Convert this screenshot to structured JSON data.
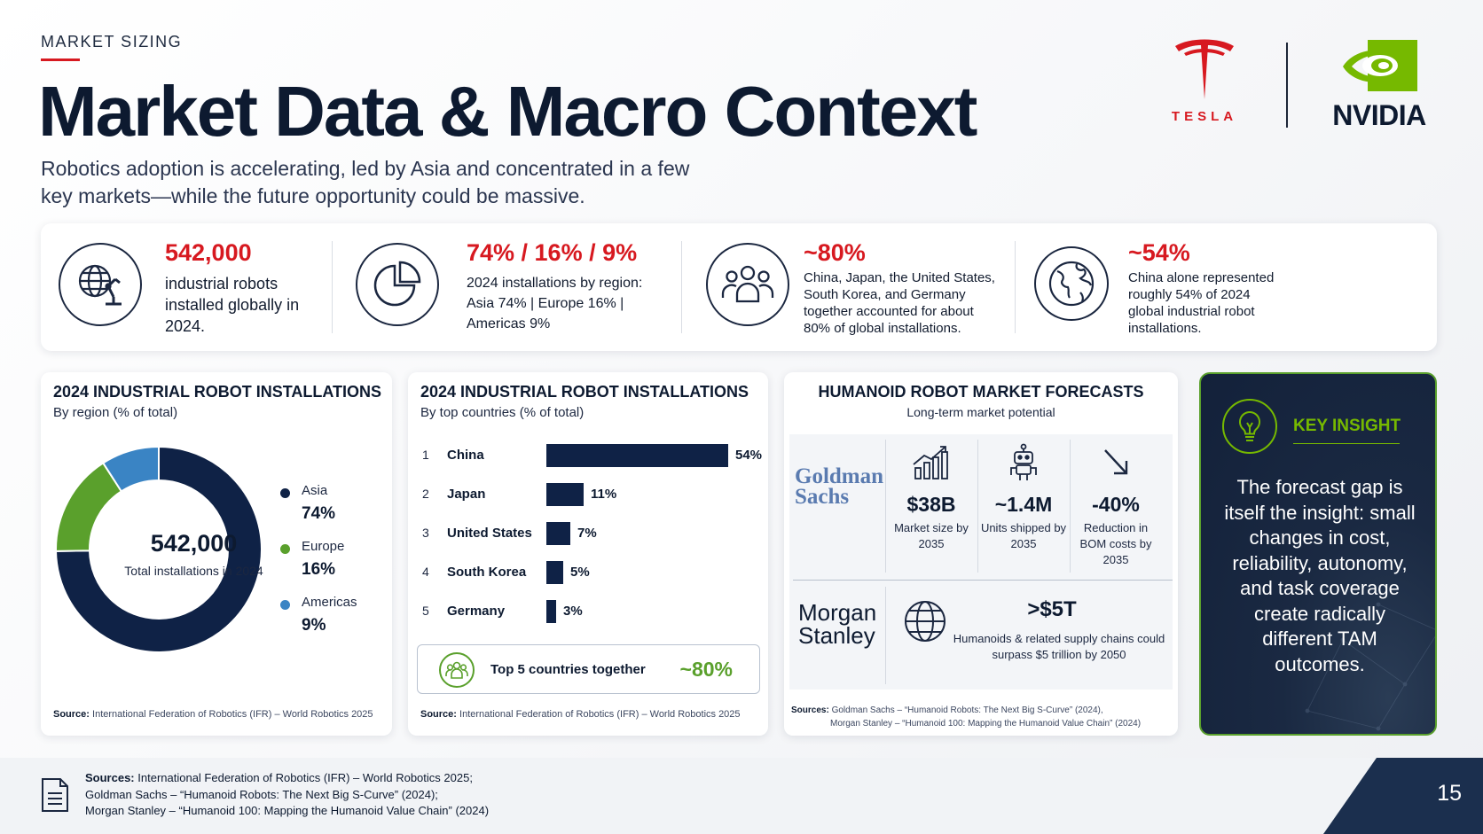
{
  "header": {
    "eyebrow": "MARKET SIZING",
    "title": "Market Data & Macro Context",
    "subtitle": "Robotics adoption is accelerating, led by Asia and concentrated in a few key markets—while the future opportunity could be massive."
  },
  "logos": {
    "tesla": "TESLA",
    "nvidia": "NVIDIA"
  },
  "stats": [
    {
      "value": "542,000",
      "desc": "industrial robots installed globally in 2024.",
      "icon": "globe-robot-arm-icon"
    },
    {
      "value": "74% / 16% / 9%",
      "desc": "2024 installations by region: Asia 74%  |  Europe 16%  |  Americas 9%",
      "icon": "pie-chart-icon"
    },
    {
      "value": "~80%",
      "desc": "China, Japan, the United States, South Korea, and Germany together accounted for about 80% of global installations.",
      "icon": "people-group-icon"
    },
    {
      "value": "~54%",
      "desc": "China alone represented roughly 54% of 2024 global industrial robot installations.",
      "icon": "globe-icon"
    }
  ],
  "region_card": {
    "title": "2024 INDUSTRIAL ROBOT INSTALLATIONS",
    "subtitle": "By region (% of total)",
    "center_value": "542,000",
    "center_label": "Total installations in 2024",
    "source_label": "Source:",
    "source": "International Federation of Robotics (IFR) – World Robotics 2025"
  },
  "country_card": {
    "title": "2024 INDUSTRIAL ROBOT INSTALLATIONS",
    "subtitle": "By top countries (% of total)",
    "top5_label": "Top 5 countries together",
    "top5_value": "~80%",
    "source_label": "Source:",
    "source": "International Federation of Robotics (IFR) – World Robotics 2025"
  },
  "chart_data": [
    {
      "type": "pie",
      "title": "2024 INDUSTRIAL ROBOT INSTALLATIONS",
      "subtitle": "By region (% of total)",
      "categories": [
        "Asia",
        "Europe",
        "Americas"
      ],
      "values": [
        74,
        16,
        9
      ],
      "labels": [
        "74%",
        "16%",
        "9%"
      ],
      "colors": [
        "#0f2246",
        "#5aa02c",
        "#3a84c4"
      ],
      "legend": "right"
    },
    {
      "type": "bar",
      "title": "2024 INDUSTRIAL ROBOT INSTALLATIONS",
      "subtitle": "By top countries (% of total)",
      "categories": [
        "China",
        "Japan",
        "United States",
        "South Korea",
        "Germany"
      ],
      "ranks": [
        "1",
        "2",
        "3",
        "4",
        "5"
      ],
      "values": [
        54,
        11,
        7,
        5,
        3
      ],
      "labels": [
        "54%",
        "11%",
        "7%",
        "5%",
        "3%"
      ],
      "orientation": "horizontal"
    }
  ],
  "forecast": {
    "title": "HUMANOID ROBOT MARKET FORECASTS",
    "subtitle": "Long-term market potential",
    "gs_logo": "Goldman Sachs",
    "gs_metrics": [
      {
        "value": "$38B",
        "desc": "Market size by 2035",
        "icon": "growth-chart-icon"
      },
      {
        "value": "~1.4M",
        "desc": "Units shipped by 2035",
        "icon": "robot-icon"
      },
      {
        "value": "-40%",
        "desc": "Reduction in BOM costs by 2035",
        "icon": "down-arrow-icon"
      }
    ],
    "ms_logo": "Morgan Stanley",
    "ms_value": ">$5T",
    "ms_desc": "Humanoids & related supply chains could surpass $5 trillion by 2050",
    "source_label": "Sources:",
    "source_line1": "Goldman Sachs – “Humanoid Robots: The Next Big S-Curve” (2024),",
    "source_line2": "Morgan Stanley – “Humanoid 100: Mapping the Humanoid Value Chain” (2024)"
  },
  "insight": {
    "label": "KEY INSIGHT",
    "text": "The forecast gap is itself the insight: small changes in cost, reliability, autonomy, and task coverage create radically different TAM outcomes."
  },
  "footer": {
    "sources_label": "Sources:",
    "line1": "International Federation of Robotics (IFR) – World Robotics 2025;",
    "line2": "Goldman Sachs – “Humanoid Robots: The Next Big S-Curve” (2024);",
    "line3": "Morgan Stanley – “Humanoid 100: Mapping the Humanoid Value Chain” (2024)",
    "page": "15"
  },
  "colors": {
    "accent_red": "#d71920",
    "navy": "#0f2246",
    "green": "#5aa02c",
    "nvidia_green": "#76b900",
    "blue": "#3a84c4"
  }
}
